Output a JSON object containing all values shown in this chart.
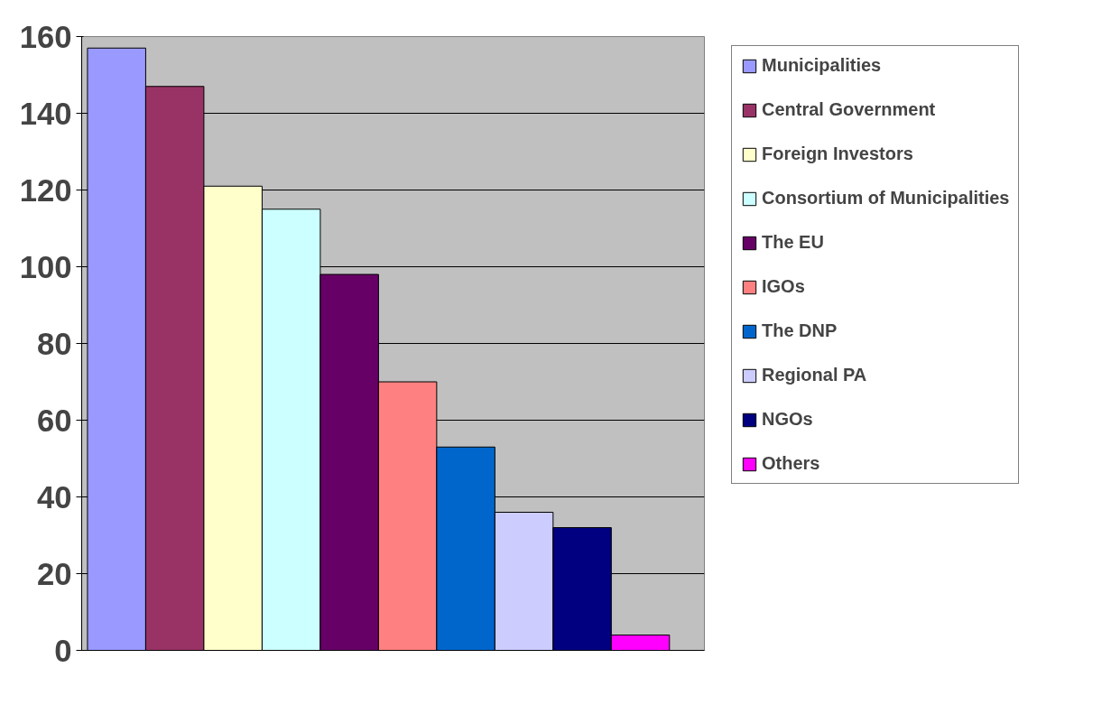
{
  "chart_data": {
    "type": "bar",
    "categories": [
      null
    ],
    "series": [
      {
        "name": "Municipalities",
        "color": "#9999ff",
        "values": [
          157
        ]
      },
      {
        "name": "Central Government",
        "color": "#993366",
        "values": [
          147
        ]
      },
      {
        "name": "Foreign Investors",
        "color": "#ffffcc",
        "values": [
          121
        ]
      },
      {
        "name": "Consortium of Municipalities",
        "color": "#ccffff",
        "values": [
          115
        ]
      },
      {
        "name": "The EU",
        "color": "#660066",
        "values": [
          98
        ]
      },
      {
        "name": "IGOs",
        "color": "#ff8080",
        "values": [
          70
        ]
      },
      {
        "name": "The DNP",
        "color": "#0066cc",
        "values": [
          53
        ]
      },
      {
        "name": "Regional PA",
        "color": "#ccccff",
        "values": [
          36
        ]
      },
      {
        "name": "NGOs",
        "color": "#000080",
        "values": [
          32
        ]
      },
      {
        "name": "Others",
        "color": "#ff00ff",
        "values": [
          4
        ]
      }
    ],
    "ylim": [
      0,
      160
    ],
    "yticks": [
      0,
      20,
      40,
      60,
      80,
      100,
      120,
      140,
      160
    ],
    "grid": "y",
    "legend": "right"
  }
}
